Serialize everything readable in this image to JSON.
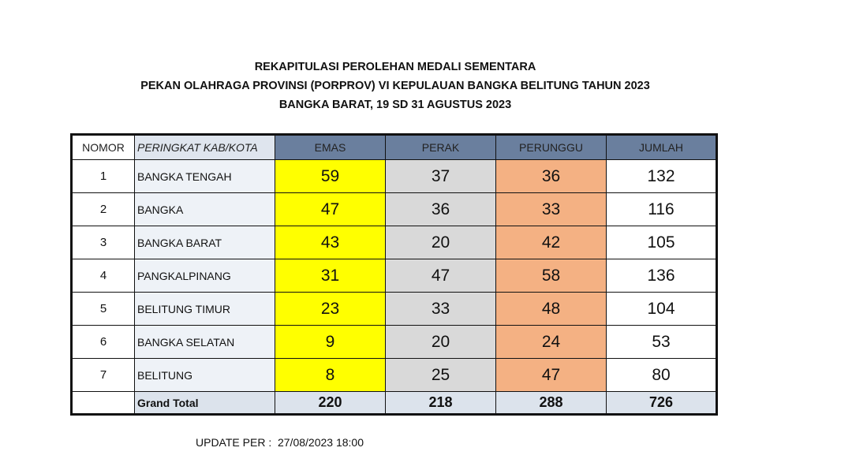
{
  "title": {
    "line1": "REKAPITULASI PEROLEHAN MEDALI SEMENTARA",
    "line2": "PEKAN OLAHRAGA PROVINSI (PORPROV) VI KEPULAUAN BANGKA BELITUNG TAHUN 2023",
    "line3": "BANGKA BARAT, 19 SD 31 AGUSTUS 2023"
  },
  "headers": [
    "NOMOR",
    "PERINGKAT KAB/KOTA",
    "EMAS",
    "PERAK",
    "PERUNGGU",
    "JUMLAH"
  ],
  "rows": [
    [
      "1",
      "BANGKA TENGAH",
      "59",
      "37",
      "36",
      "132"
    ],
    [
      "2",
      "BANGKA",
      "47",
      "36",
      "33",
      "116"
    ],
    [
      "3",
      "BANGKA BARAT",
      "43",
      "20",
      "42",
      "105"
    ],
    [
      "4",
      "PANGKALPINANG",
      "31",
      "47",
      "58",
      "136"
    ],
    [
      "5",
      "BELITUNG TIMUR",
      "23",
      "33",
      "48",
      "104"
    ],
    [
      "6",
      "BANGKA SELATAN",
      "9",
      "20",
      "24",
      "53"
    ],
    [
      "7",
      "BELITUNG",
      "8",
      "25",
      "47",
      "80"
    ]
  ],
  "total": {
    "label": "Grand Total",
    "emas": "220",
    "perak": "218",
    "perunggu": "288",
    "jumlah": "726"
  },
  "update": {
    "label": "UPDATE PER :",
    "value": "27/08/2023 18:00"
  },
  "colors": {
    "emas": "#ffff00",
    "perak": "#d9d9d9",
    "perunggu": "#f4b183",
    "header": "#6a7f9e"
  }
}
